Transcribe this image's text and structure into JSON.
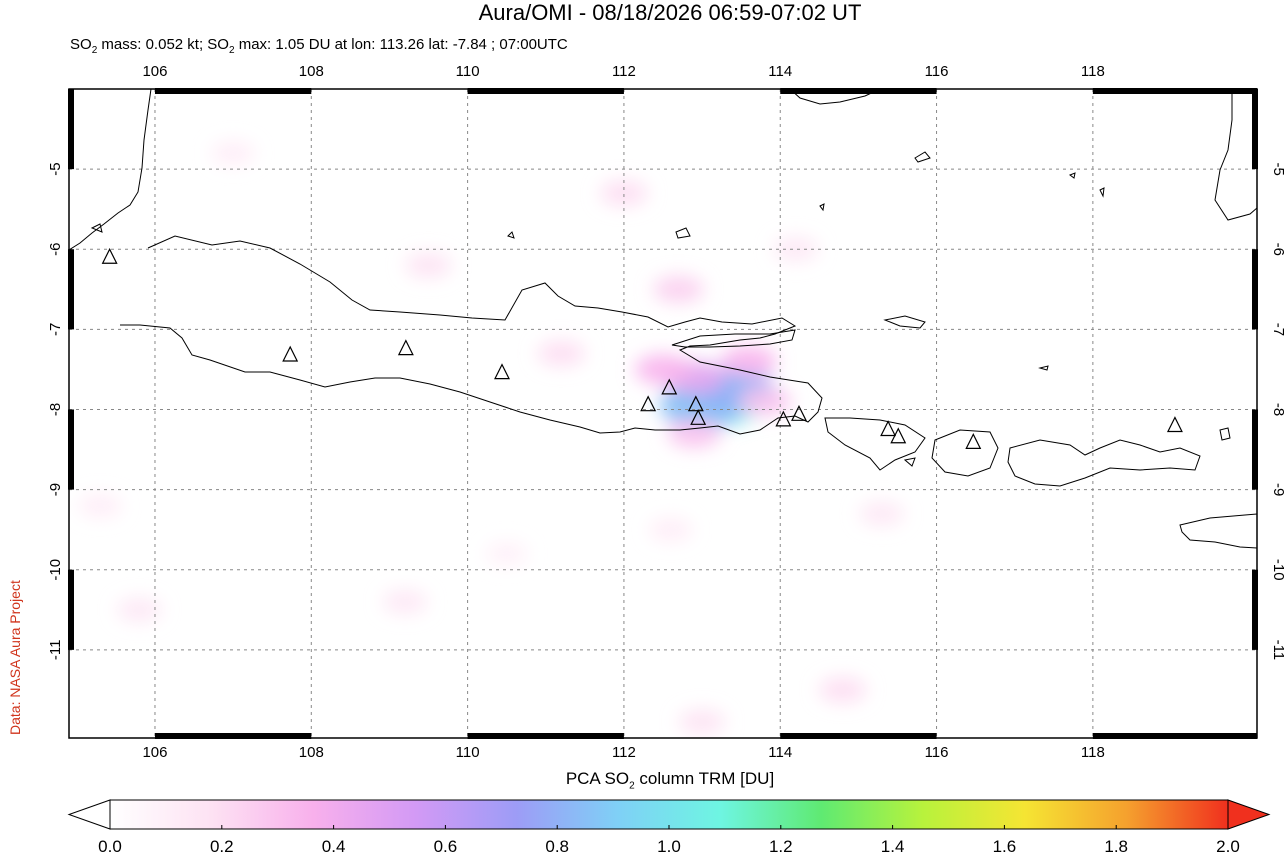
{
  "title": "Aura/OMI - 08/18/2026 06:59-07:02 UT",
  "subtitle": {
    "mass_prefix": "SO",
    "mass_sub": "2",
    "mass_text": " mass: 0.052 kt; SO",
    "max_sub": "2",
    "max_text": " max: 1.05 DU at lon: 113.26 lat: -7.84 ; 07:00UTC"
  },
  "credit": "Data: NASA Aura Project",
  "map": {
    "lon_range": [
      104.9,
      120.1
    ],
    "lat_range": [
      -12.1,
      -4.0
    ],
    "lon_ticks": [
      "106",
      "108",
      "110",
      "112",
      "114",
      "116",
      "118"
    ],
    "lat_ticks": [
      "-5",
      "-6",
      "-7",
      "-8",
      "-9",
      "-10",
      "-11"
    ],
    "grid": "dashed",
    "max_marker": {
      "lon": 113.26,
      "lat": -7.84
    }
  },
  "volcanoes": [
    {
      "lon": 105.42,
      "lat": -6.1
    },
    {
      "lon": 107.73,
      "lat": -7.32
    },
    {
      "lon": 109.21,
      "lat": -7.24
    },
    {
      "lon": 110.44,
      "lat": -7.54
    },
    {
      "lon": 112.31,
      "lat": -7.94
    },
    {
      "lon": 112.58,
      "lat": -7.73
    },
    {
      "lon": 112.92,
      "lat": -7.94
    },
    {
      "lon": 112.95,
      "lat": -8.11
    },
    {
      "lon": 114.04,
      "lat": -8.13
    },
    {
      "lon": 114.24,
      "lat": -8.06
    },
    {
      "lon": 115.38,
      "lat": -8.25
    },
    {
      "lon": 115.51,
      "lat": -8.34
    },
    {
      "lon": 116.47,
      "lat": -8.41
    },
    {
      "lon": 119.05,
      "lat": -8.2
    }
  ],
  "so2_blobs": [
    {
      "lon": 113.2,
      "lat": -7.88,
      "value": 1.05
    },
    {
      "lon": 113.0,
      "lat": -7.95,
      "value": 0.85
    },
    {
      "lon": 113.4,
      "lat": -7.75,
      "value": 0.8
    },
    {
      "lon": 112.9,
      "lat": -7.6,
      "value": 0.45
    },
    {
      "lon": 113.6,
      "lat": -7.4,
      "value": 0.35
    },
    {
      "lon": 112.5,
      "lat": -7.5,
      "value": 0.35
    },
    {
      "lon": 113.8,
      "lat": -7.9,
      "value": 0.3
    },
    {
      "lon": 112.9,
      "lat": -8.3,
      "value": 0.3
    },
    {
      "lon": 112.7,
      "lat": -6.5,
      "value": 0.25
    },
    {
      "lon": 111.2,
      "lat": -7.3,
      "value": 0.2
    },
    {
      "lon": 112.0,
      "lat": -5.3,
      "value": 0.2
    },
    {
      "lon": 109.5,
      "lat": -6.2,
      "value": 0.18
    },
    {
      "lon": 107.0,
      "lat": -4.8,
      "value": 0.12
    },
    {
      "lon": 105.8,
      "lat": -10.5,
      "value": 0.15
    },
    {
      "lon": 109.2,
      "lat": -10.4,
      "value": 0.15
    },
    {
      "lon": 114.8,
      "lat": -11.5,
      "value": 0.2
    },
    {
      "lon": 113.0,
      "lat": -11.9,
      "value": 0.18
    },
    {
      "lon": 115.3,
      "lat": -9.3,
      "value": 0.15
    },
    {
      "lon": 112.6,
      "lat": -9.5,
      "value": 0.12
    },
    {
      "lon": 105.3,
      "lat": -9.2,
      "value": 0.12
    },
    {
      "lon": 114.2,
      "lat": -6.0,
      "value": 0.15
    },
    {
      "lon": 110.5,
      "lat": -9.8,
      "value": 0.1
    }
  ],
  "colorbar": {
    "title_prefix": "PCA SO",
    "title_sub": "2",
    "title_suffix": " column TRM [DU]",
    "labels": [
      "0.0",
      "0.2",
      "0.4",
      "0.6",
      "0.8",
      "1.0",
      "1.2",
      "1.4",
      "1.6",
      "1.8",
      "2.0"
    ],
    "range": [
      0.0,
      2.0
    ],
    "colors": [
      "#ffffff",
      "#fde2f3",
      "#f8b0ec",
      "#d39af5",
      "#9d9cf6",
      "#7fd0f6",
      "#6ef5e2",
      "#5fea72",
      "#b8f23c",
      "#f5e533",
      "#f5a12e",
      "#f0301e"
    ]
  }
}
